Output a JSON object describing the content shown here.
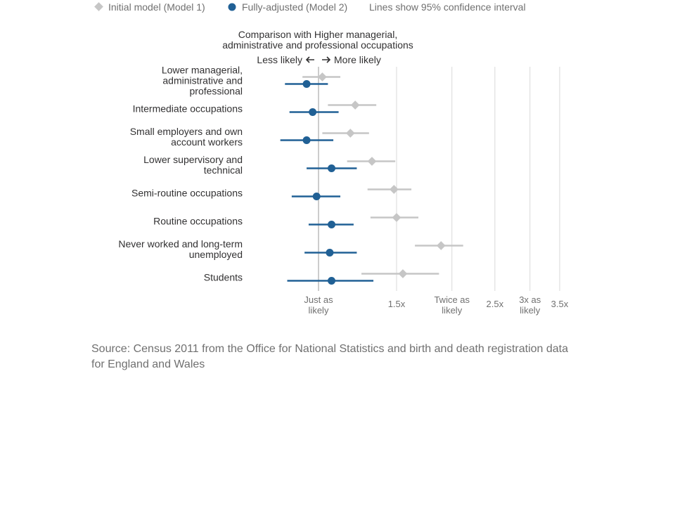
{
  "legend": {
    "model1": "Initial model (Model 1)",
    "model2": "Fully-adjusted (Model 2)",
    "ci_note": "Lines show 95% confidence interval"
  },
  "chart_title": {
    "line1": "Comparison with Higher managerial,",
    "line2": "administrative and professional occupations"
  },
  "direction": {
    "less": "Less likely",
    "more": "More likely"
  },
  "source": "Source: Census 2011 from the Office for National Statistics and birth and death registration data for England and Wales",
  "colors": {
    "model1": "#c6c6c6",
    "model2": "#206095",
    "grid": "#d9d9d9",
    "baseline": "#bcbcbc",
    "text": "#323132",
    "muted": "#707070"
  },
  "chart_data": {
    "type": "scatter",
    "x_scale": "log",
    "xlim": [
      0.78,
      4.0
    ],
    "grid": true,
    "x_ticks": [
      {
        "value": 1.0,
        "label": [
          "Just as",
          "likely"
        ]
      },
      {
        "value": 1.5,
        "label": [
          "1.5x"
        ]
      },
      {
        "value": 2.0,
        "label": [
          "Twice as",
          "likely"
        ]
      },
      {
        "value": 2.5,
        "label": [
          "2.5x"
        ]
      },
      {
        "value": 3.0,
        "label": [
          "3x as",
          "likely"
        ]
      },
      {
        "value": 3.5,
        "label": [
          "3.5x"
        ]
      }
    ],
    "categories": [
      {
        "label": [
          "Lower managerial,",
          "administrative and",
          "professional"
        ]
      },
      {
        "label": [
          "Intermediate occupations"
        ]
      },
      {
        "label": [
          "Small employers and own",
          "account workers"
        ]
      },
      {
        "label": [
          "Lower supervisory and",
          "technical"
        ]
      },
      {
        "label": [
          "Semi-routine occupations"
        ]
      },
      {
        "label": [
          "Routine occupations"
        ]
      },
      {
        "label": [
          "Never worked and long-term",
          "unemployed"
        ]
      },
      {
        "label": [
          "Students"
        ]
      }
    ],
    "series": [
      {
        "name": "Initial model (Model 1)",
        "marker": "diamond",
        "points": [
          {
            "value": 1.02,
            "low": 0.92,
            "high": 1.12
          },
          {
            "value": 1.21,
            "low": 1.05,
            "high": 1.35
          },
          {
            "value": 1.18,
            "low": 1.02,
            "high": 1.3
          },
          {
            "value": 1.32,
            "low": 1.16,
            "high": 1.49
          },
          {
            "value": 1.48,
            "low": 1.29,
            "high": 1.62
          },
          {
            "value": 1.5,
            "low": 1.31,
            "high": 1.68
          },
          {
            "value": 1.89,
            "low": 1.65,
            "high": 2.12
          },
          {
            "value": 1.55,
            "low": 1.25,
            "high": 1.87
          }
        ]
      },
      {
        "name": "Fully-adjusted (Model 2)",
        "marker": "circle",
        "points": [
          {
            "value": 0.94,
            "low": 0.84,
            "high": 1.05
          },
          {
            "value": 0.97,
            "low": 0.86,
            "high": 1.11
          },
          {
            "value": 0.94,
            "low": 0.82,
            "high": 1.08
          },
          {
            "value": 1.07,
            "low": 0.94,
            "high": 1.22
          },
          {
            "value": 0.99,
            "low": 0.87,
            "high": 1.12
          },
          {
            "value": 1.07,
            "low": 0.95,
            "high": 1.2
          },
          {
            "value": 1.06,
            "low": 0.93,
            "high": 1.22
          },
          {
            "value": 1.07,
            "low": 0.85,
            "high": 1.33
          }
        ]
      }
    ]
  }
}
